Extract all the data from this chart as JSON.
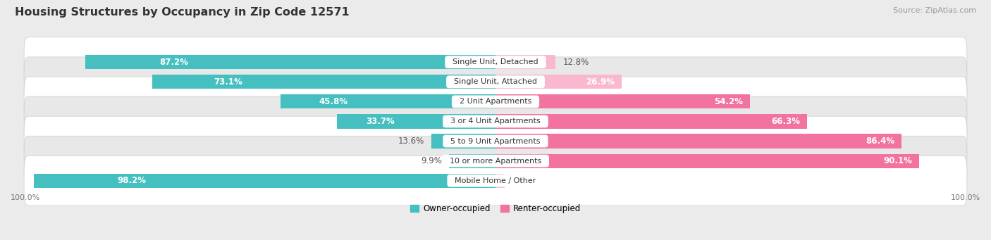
{
  "title": "Housing Structures by Occupancy in Zip Code 12571",
  "source": "Source: ZipAtlas.com",
  "categories": [
    "Single Unit, Detached",
    "Single Unit, Attached",
    "2 Unit Apartments",
    "3 or 4 Unit Apartments",
    "5 to 9 Unit Apartments",
    "10 or more Apartments",
    "Mobile Home / Other"
  ],
  "owner_pct": [
    87.2,
    73.1,
    45.8,
    33.7,
    13.6,
    9.9,
    98.2
  ],
  "renter_pct": [
    12.8,
    26.9,
    54.2,
    66.3,
    86.4,
    90.1,
    1.9
  ],
  "owner_color": "#45BFBF",
  "renter_color": "#F272A0",
  "renter_color_light": "#F9B8CF",
  "bg_color": "#EBEBEB",
  "row_bg_white": "#FFFFFF",
  "row_bg_gray": "#E8E8E8",
  "title_fontsize": 11.5,
  "label_fontsize": 8.5,
  "tick_fontsize": 8,
  "legend_fontsize": 8.5,
  "source_fontsize": 8
}
